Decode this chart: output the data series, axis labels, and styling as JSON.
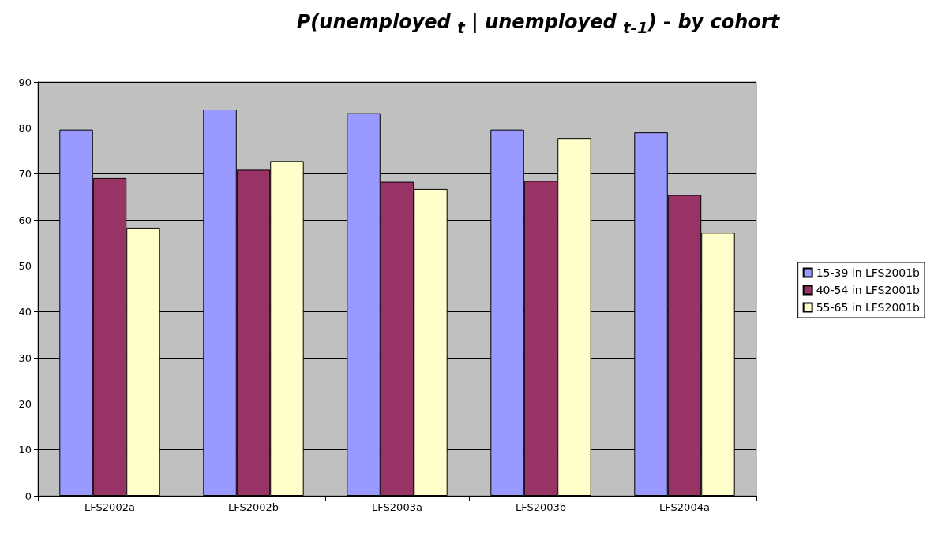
{
  "chart_data": {
    "type": "bar",
    "title": "P(unemployed $_{t}$ | unemployed $_{t-1}$) - by cohort",
    "categories": [
      "LFS2002a",
      "LFS2002b",
      "LFS2003a",
      "LFS2003b",
      "LFS2004a"
    ],
    "series": [
      {
        "name": "15-39 in LFS2001b",
        "color": "#9999ff",
        "values": [
          79.6,
          84.0,
          83.2,
          79.6,
          79.0
        ]
      },
      {
        "name": "40-54 in LFS2001b",
        "color": "#993366",
        "values": [
          69.1,
          70.9,
          68.3,
          68.5,
          65.4
        ]
      },
      {
        "name": "55-65 in LFS2001b",
        "color": "#ffffcc",
        "values": [
          58.3,
          72.8,
          66.7,
          77.8,
          57.2
        ]
      }
    ],
    "ylim": [
      0,
      90
    ],
    "yticks": [
      0,
      10,
      20,
      30,
      40,
      50,
      60,
      70,
      80,
      90
    ],
    "grid": "y",
    "legend": "right"
  }
}
